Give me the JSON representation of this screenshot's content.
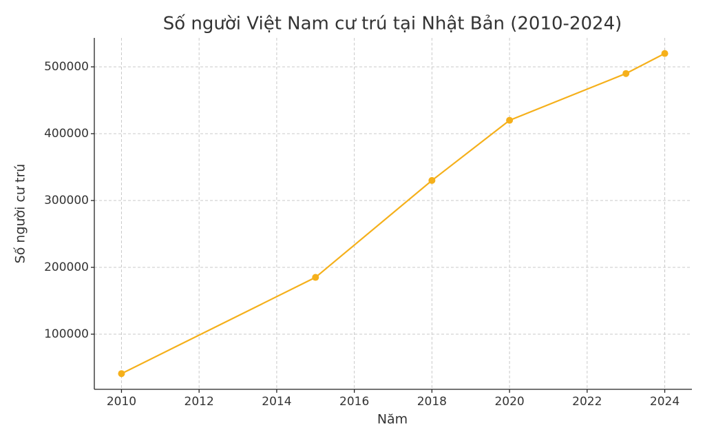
{
  "chart_data": {
    "type": "line",
    "title": "Số người Việt Nam cư trú tại Nhật Bản (2010-2024)",
    "x_label": "Năm",
    "y_label": "Số người cư trú",
    "x": [
      2010,
      2015,
      2018,
      2020,
      2023,
      2024
    ],
    "series": [
      {
        "name": "Số người cư trú",
        "color": "#f5b01b",
        "values": [
          41000,
          185000,
          330000,
          420000,
          490000,
          520000
        ]
      }
    ],
    "xlim": [
      2009.3,
      2024.7
    ],
    "xticks": [
      2010,
      2012,
      2014,
      2016,
      2018,
      2020,
      2022,
      2024
    ],
    "ylim": [
      17500,
      543300
    ],
    "yticks": [
      100000,
      200000,
      300000,
      400000,
      500000
    ],
    "grid": true,
    "legend": false
  }
}
